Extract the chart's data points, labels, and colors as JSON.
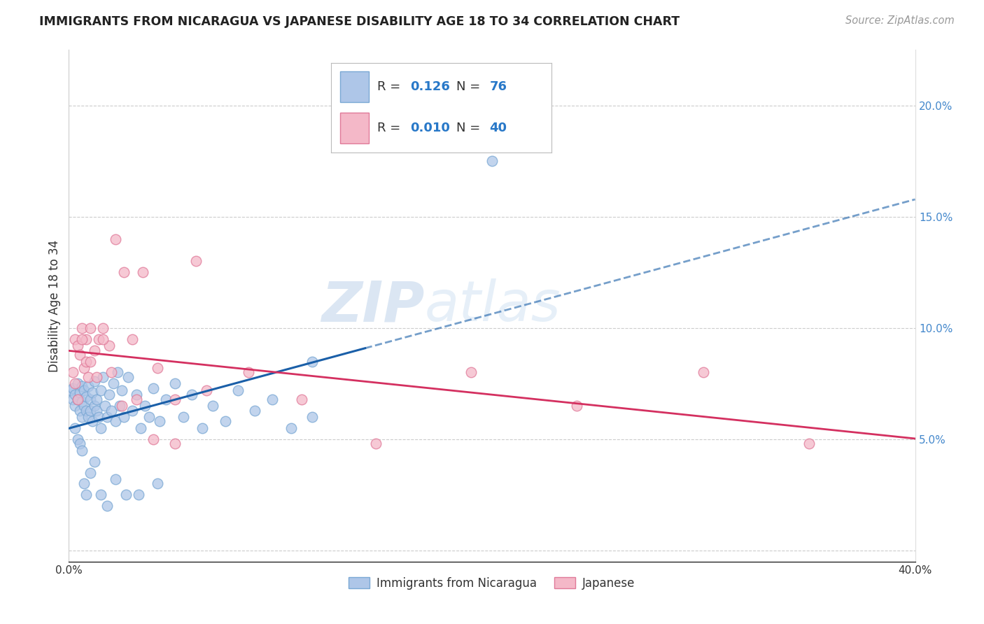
{
  "title": "IMMIGRANTS FROM NICARAGUA VS JAPANESE DISABILITY AGE 18 TO 34 CORRELATION CHART",
  "source": "Source: ZipAtlas.com",
  "ylabel": "Disability Age 18 to 34",
  "xlim": [
    0.0,
    0.4
  ],
  "ylim": [
    -0.005,
    0.225
  ],
  "ytick_vals": [
    0.0,
    0.05,
    0.1,
    0.15,
    0.2
  ],
  "xtick_vals": [
    0.0,
    0.1,
    0.2,
    0.3,
    0.4
  ],
  "blue_R": "0.126",
  "blue_N": "76",
  "pink_R": "0.010",
  "pink_N": "40",
  "blue_color": "#aec6e8",
  "blue_edge": "#7aa8d4",
  "pink_color": "#f4b8c8",
  "pink_edge": "#e07a99",
  "blue_line_color": "#1a5fa8",
  "pink_line_color": "#d43060",
  "watermark_zip": "ZIP",
  "watermark_atlas": "atlas",
  "blue_scatter_x": [
    0.001,
    0.002,
    0.002,
    0.003,
    0.003,
    0.004,
    0.004,
    0.005,
    0.005,
    0.006,
    0.006,
    0.006,
    0.007,
    0.007,
    0.008,
    0.008,
    0.009,
    0.009,
    0.01,
    0.01,
    0.011,
    0.011,
    0.012,
    0.012,
    0.013,
    0.013,
    0.014,
    0.015,
    0.015,
    0.016,
    0.017,
    0.018,
    0.019,
    0.02,
    0.021,
    0.022,
    0.023,
    0.024,
    0.025,
    0.026,
    0.028,
    0.03,
    0.032,
    0.034,
    0.036,
    0.038,
    0.04,
    0.043,
    0.046,
    0.05,
    0.054,
    0.058,
    0.063,
    0.068,
    0.074,
    0.08,
    0.088,
    0.096,
    0.105,
    0.115,
    0.003,
    0.004,
    0.005,
    0.006,
    0.007,
    0.008,
    0.01,
    0.012,
    0.015,
    0.018,
    0.022,
    0.027,
    0.033,
    0.042,
    0.115,
    0.2
  ],
  "blue_scatter_y": [
    0.072,
    0.068,
    0.073,
    0.065,
    0.07,
    0.068,
    0.075,
    0.063,
    0.071,
    0.067,
    0.074,
    0.06,
    0.065,
    0.072,
    0.063,
    0.069,
    0.06,
    0.074,
    0.063,
    0.068,
    0.058,
    0.071,
    0.065,
    0.076,
    0.063,
    0.068,
    0.06,
    0.072,
    0.055,
    0.078,
    0.065,
    0.06,
    0.07,
    0.063,
    0.075,
    0.058,
    0.08,
    0.065,
    0.072,
    0.06,
    0.078,
    0.063,
    0.07,
    0.055,
    0.065,
    0.06,
    0.073,
    0.058,
    0.068,
    0.075,
    0.06,
    0.07,
    0.055,
    0.065,
    0.058,
    0.072,
    0.063,
    0.068,
    0.055,
    0.06,
    0.055,
    0.05,
    0.048,
    0.045,
    0.03,
    0.025,
    0.035,
    0.04,
    0.025,
    0.02,
    0.032,
    0.025,
    0.025,
    0.03,
    0.085,
    0.175
  ],
  "pink_scatter_x": [
    0.002,
    0.003,
    0.004,
    0.005,
    0.006,
    0.007,
    0.008,
    0.009,
    0.01,
    0.012,
    0.014,
    0.016,
    0.019,
    0.022,
    0.026,
    0.03,
    0.035,
    0.042,
    0.05,
    0.06,
    0.003,
    0.004,
    0.006,
    0.008,
    0.01,
    0.013,
    0.016,
    0.02,
    0.025,
    0.032,
    0.04,
    0.05,
    0.065,
    0.085,
    0.11,
    0.145,
    0.19,
    0.24,
    0.3,
    0.35
  ],
  "pink_scatter_y": [
    0.08,
    0.095,
    0.092,
    0.088,
    0.1,
    0.082,
    0.095,
    0.078,
    0.1,
    0.09,
    0.095,
    0.1,
    0.092,
    0.14,
    0.125,
    0.095,
    0.125,
    0.082,
    0.068,
    0.13,
    0.075,
    0.068,
    0.095,
    0.085,
    0.085,
    0.078,
    0.095,
    0.08,
    0.065,
    0.068,
    0.05,
    0.048,
    0.072,
    0.08,
    0.068,
    0.048,
    0.08,
    0.065,
    0.08,
    0.048
  ]
}
